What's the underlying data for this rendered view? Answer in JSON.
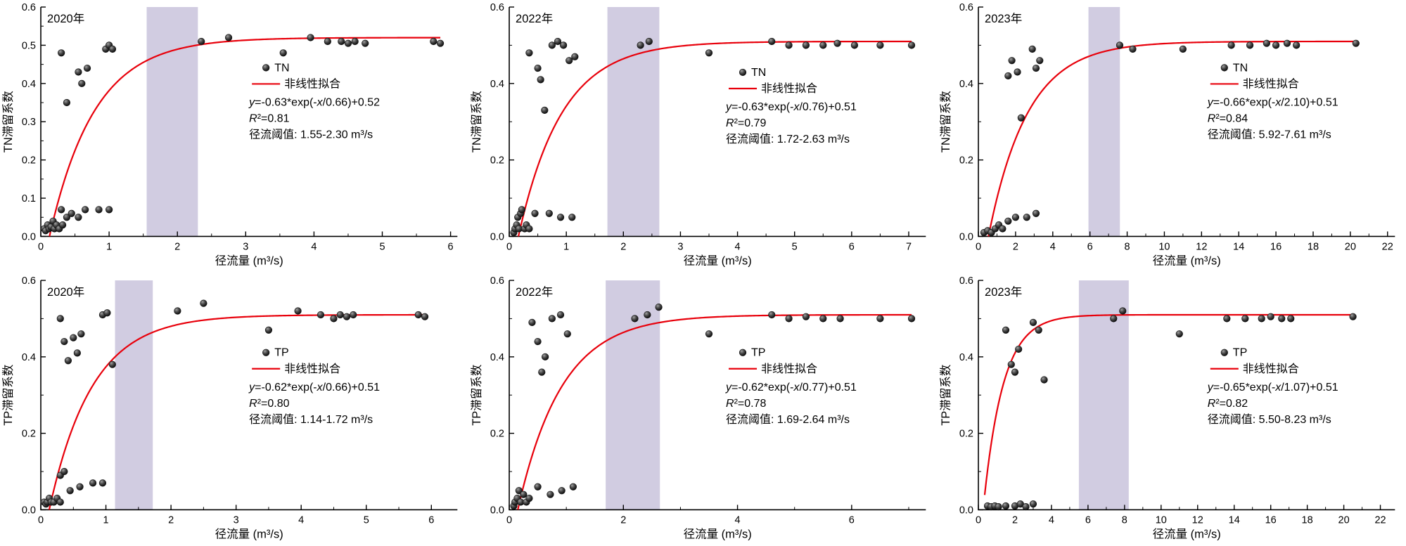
{
  "figure": {
    "background": "#ffffff"
  },
  "colors": {
    "curve": "#e8000b",
    "band": "#ccc7de",
    "point_dark": "#050505",
    "point_light": "#a0a0a0",
    "axis": "#000000",
    "text": "#000000"
  },
  "chart_data": [
    {
      "id": "tn-2020",
      "type": "scatter",
      "year_label": "2020年",
      "series_label": "TN",
      "fit_label": "非线性拟合",
      "equation": "y=-0.63*exp(-x/0.66)+0.52",
      "r_squared": "R²=0.81",
      "threshold_label": "径流阈值: 1.55-2.30 m³/s",
      "xlabel": "径流量 (m³/s)",
      "ylabel": "TN滞留系数",
      "xlim": [
        0,
        6.1
      ],
      "ylim": [
        0,
        0.6
      ],
      "xticks": [
        0,
        1,
        2,
        3,
        4,
        5,
        6
      ],
      "yticks": [
        0,
        0.1,
        0.2,
        0.3,
        0.4,
        0.5,
        0.6
      ],
      "band": [
        1.55,
        2.3
      ],
      "fit": {
        "A": 0.63,
        "B": 0.66,
        "C": 0.52
      },
      "legend_pos": [
        0.5,
        0.28
      ],
      "points": [
        [
          0.05,
          0.02
        ],
        [
          0.07,
          0.015
        ],
        [
          0.1,
          0.03
        ],
        [
          0.12,
          0.02
        ],
        [
          0.15,
          0.025
        ],
        [
          0.18,
          0.04
        ],
        [
          0.2,
          0.02
        ],
        [
          0.23,
          0.03
        ],
        [
          0.27,
          0.02
        ],
        [
          0.32,
          0.03
        ],
        [
          0.3,
          0.07
        ],
        [
          0.38,
          0.05
        ],
        [
          0.45,
          0.06
        ],
        [
          0.55,
          0.05
        ],
        [
          0.65,
          0.07
        ],
        [
          0.85,
          0.07
        ],
        [
          1.0,
          0.07
        ],
        [
          0.3,
          0.48
        ],
        [
          0.38,
          0.35
        ],
        [
          0.55,
          0.43
        ],
        [
          0.6,
          0.4
        ],
        [
          0.68,
          0.44
        ],
        [
          0.95,
          0.49
        ],
        [
          1.0,
          0.5
        ],
        [
          1.05,
          0.49
        ],
        [
          2.35,
          0.51
        ],
        [
          2.75,
          0.52
        ],
        [
          3.55,
          0.48
        ],
        [
          3.95,
          0.52
        ],
        [
          4.2,
          0.51
        ],
        [
          4.4,
          0.51
        ],
        [
          4.5,
          0.505
        ],
        [
          4.6,
          0.51
        ],
        [
          4.75,
          0.505
        ],
        [
          5.75,
          0.51
        ],
        [
          5.85,
          0.505
        ]
      ]
    },
    {
      "id": "tn-2022",
      "type": "scatter",
      "year_label": "2022年",
      "series_label": "TN",
      "fit_label": "非线性拟合",
      "equation": "y=-0.63*exp(-x/0.76)+0.51",
      "r_squared": "R²=0.79",
      "threshold_label": "径流阈值: 1.72-2.63 m³/s",
      "xlabel": "径流量 (m³/s)",
      "ylabel": "TN滞留系数",
      "xlim": [
        0,
        7.3
      ],
      "ylim": [
        0,
        0.6
      ],
      "xticks": [
        0,
        1,
        2,
        3,
        4,
        5,
        6,
        7
      ],
      "yticks": [
        0,
        0.2,
        0.4,
        0.6
      ],
      "band": [
        1.72,
        2.63
      ],
      "fit": {
        "A": 0.63,
        "B": 0.76,
        "C": 0.51
      },
      "legend_pos": [
        0.52,
        0.3
      ],
      "points": [
        [
          0.08,
          0.01
        ],
        [
          0.1,
          0.02
        ],
        [
          0.13,
          0.03
        ],
        [
          0.15,
          0.05
        ],
        [
          0.17,
          0.02
        ],
        [
          0.2,
          0.06
        ],
        [
          0.22,
          0.07
        ],
        [
          0.27,
          0.02
        ],
        [
          0.3,
          0.03
        ],
        [
          0.35,
          0.02
        ],
        [
          0.45,
          0.06
        ],
        [
          0.7,
          0.06
        ],
        [
          0.9,
          0.05
        ],
        [
          1.1,
          0.05
        ],
        [
          0.35,
          0.48
        ],
        [
          0.5,
          0.44
        ],
        [
          0.55,
          0.41
        ],
        [
          0.62,
          0.33
        ],
        [
          0.75,
          0.5
        ],
        [
          0.85,
          0.51
        ],
        [
          0.95,
          0.5
        ],
        [
          1.05,
          0.46
        ],
        [
          1.15,
          0.47
        ],
        [
          2.3,
          0.5
        ],
        [
          2.45,
          0.51
        ],
        [
          3.5,
          0.48
        ],
        [
          4.6,
          0.51
        ],
        [
          4.9,
          0.5
        ],
        [
          5.2,
          0.5
        ],
        [
          5.5,
          0.5
        ],
        [
          5.75,
          0.505
        ],
        [
          6.05,
          0.5
        ],
        [
          6.5,
          0.5
        ],
        [
          7.05,
          0.5
        ]
      ]
    },
    {
      "id": "tn-2023",
      "type": "scatter",
      "year_label": "2023年",
      "series_label": "TN",
      "fit_label": "非线性拟合",
      "equation": "y=-0.66*exp(-x/2.10)+0.51",
      "r_squared": "R²=0.84",
      "threshold_label": "径流阈值: 5.92-7.61 m³/s",
      "xlabel": "径流量 (m³/s)",
      "ylabel": "TN滞留系数",
      "xlim": [
        0,
        22.4
      ],
      "ylim": [
        0,
        0.6
      ],
      "xticks": [
        0,
        2,
        4,
        6,
        8,
        10,
        12,
        14,
        16,
        18,
        20,
        22
      ],
      "yticks": [
        0,
        0.2,
        0.4,
        0.6
      ],
      "band": [
        5.92,
        7.61
      ],
      "fit": {
        "A": 0.66,
        "B": 2.1,
        "C": 0.51
      },
      "legend_pos": [
        0.55,
        0.28
      ],
      "points": [
        [
          0.3,
          0.01
        ],
        [
          0.5,
          0.015
        ],
        [
          0.7,
          0.01
        ],
        [
          0.9,
          0.02
        ],
        [
          1.1,
          0.03
        ],
        [
          1.3,
          0.02
        ],
        [
          1.6,
          0.04
        ],
        [
          2.0,
          0.05
        ],
        [
          2.6,
          0.05
        ],
        [
          3.1,
          0.06
        ],
        [
          1.6,
          0.42
        ],
        [
          1.8,
          0.46
        ],
        [
          2.1,
          0.43
        ],
        [
          2.3,
          0.31
        ],
        [
          2.9,
          0.49
        ],
        [
          3.1,
          0.44
        ],
        [
          3.3,
          0.46
        ],
        [
          7.6,
          0.5
        ],
        [
          8.3,
          0.49
        ],
        [
          11.0,
          0.49
        ],
        [
          13.6,
          0.5
        ],
        [
          14.6,
          0.5
        ],
        [
          15.5,
          0.505
        ],
        [
          16.0,
          0.5
        ],
        [
          16.6,
          0.505
        ],
        [
          17.1,
          0.5
        ],
        [
          20.3,
          0.505
        ]
      ]
    },
    {
      "id": "tp-2020",
      "type": "scatter",
      "year_label": "2020年",
      "series_label": "TP",
      "fit_label": "非线性拟合",
      "equation": "y=-0.62*exp(-x/0.66)+0.51",
      "r_squared": "R²=0.80",
      "threshold_label": "径流阈值: 1.14-1.72 m³/s",
      "xlabel": "径流量 (m³/s)",
      "ylabel": "TP滞留系数",
      "xlim": [
        0,
        6.4
      ],
      "ylim": [
        0,
        0.6
      ],
      "xticks": [
        0,
        1,
        2,
        3,
        4,
        5,
        6
      ],
      "yticks": [
        0,
        0.2,
        0.4,
        0.6
      ],
      "band": [
        1.14,
        1.72
      ],
      "fit": {
        "A": 0.62,
        "B": 0.66,
        "C": 0.51
      },
      "legend_pos": [
        0.5,
        0.33
      ],
      "points": [
        [
          0.05,
          0.02
        ],
        [
          0.08,
          0.015
        ],
        [
          0.1,
          0.02
        ],
        [
          0.13,
          0.03
        ],
        [
          0.16,
          0.02
        ],
        [
          0.2,
          0.02
        ],
        [
          0.25,
          0.03
        ],
        [
          0.3,
          0.02
        ],
        [
          0.3,
          0.09
        ],
        [
          0.36,
          0.1
        ],
        [
          0.45,
          0.05
        ],
        [
          0.6,
          0.06
        ],
        [
          0.8,
          0.07
        ],
        [
          0.95,
          0.07
        ],
        [
          0.3,
          0.5
        ],
        [
          0.36,
          0.44
        ],
        [
          0.42,
          0.39
        ],
        [
          0.5,
          0.45
        ],
        [
          0.56,
          0.41
        ],
        [
          0.62,
          0.46
        ],
        [
          0.95,
          0.51
        ],
        [
          1.02,
          0.515
        ],
        [
          1.1,
          0.38
        ],
        [
          2.1,
          0.52
        ],
        [
          2.5,
          0.54
        ],
        [
          3.5,
          0.47
        ],
        [
          3.95,
          0.52
        ],
        [
          4.3,
          0.51
        ],
        [
          4.5,
          0.5
        ],
        [
          4.6,
          0.51
        ],
        [
          4.7,
          0.505
        ],
        [
          4.8,
          0.51
        ],
        [
          5.8,
          0.51
        ],
        [
          5.9,
          0.505
        ]
      ]
    },
    {
      "id": "tp-2022",
      "type": "scatter",
      "year_label": "2022年",
      "series_label": "TP",
      "fit_label": "非线性拟合",
      "equation": "y=-0.62*exp(-x/0.77)+0.51",
      "r_squared": "R²=0.78",
      "threshold_label": "径流阈值: 1.69-2.64 m³/s",
      "xlabel": "径流量 (m³/s)",
      "ylabel": "TP滞留系数",
      "xlim": [
        0,
        7.3
      ],
      "ylim": [
        0,
        0.6
      ],
      "xticks": [
        0,
        2,
        4,
        6
      ],
      "yticks": [
        0,
        0.2,
        0.4,
        0.6
      ],
      "band": [
        1.69,
        2.64
      ],
      "fit": {
        "A": 0.62,
        "B": 0.77,
        "C": 0.51
      },
      "legend_pos": [
        0.52,
        0.33
      ],
      "points": [
        [
          0.08,
          0.01
        ],
        [
          0.1,
          0.02
        ],
        [
          0.14,
          0.03
        ],
        [
          0.17,
          0.05
        ],
        [
          0.2,
          0.02
        ],
        [
          0.25,
          0.04
        ],
        [
          0.3,
          0.02
        ],
        [
          0.35,
          0.03
        ],
        [
          0.5,
          0.06
        ],
        [
          0.72,
          0.04
        ],
        [
          0.92,
          0.05
        ],
        [
          1.12,
          0.06
        ],
        [
          0.4,
          0.49
        ],
        [
          0.5,
          0.44
        ],
        [
          0.57,
          0.36
        ],
        [
          0.63,
          0.4
        ],
        [
          0.75,
          0.5
        ],
        [
          0.9,
          0.51
        ],
        [
          1.02,
          0.46
        ],
        [
          2.2,
          0.5
        ],
        [
          2.42,
          0.51
        ],
        [
          2.62,
          0.53
        ],
        [
          3.5,
          0.46
        ],
        [
          4.6,
          0.51
        ],
        [
          4.9,
          0.5
        ],
        [
          5.2,
          0.505
        ],
        [
          5.5,
          0.5
        ],
        [
          5.8,
          0.5
        ],
        [
          6.5,
          0.5
        ],
        [
          7.05,
          0.5
        ]
      ]
    },
    {
      "id": "tp-2023",
      "type": "scatter",
      "year_label": "2023年",
      "series_label": "TP",
      "fit_label": "非线性拟合",
      "equation": "y=-0.65*exp(-x/1.07)+0.51",
      "r_squared": "R²=0.82",
      "threshold_label": "径流阈值: 5.50-8.23 m³/s",
      "xlabel": "径流量 (m³/s)",
      "ylabel": "TP滞留系数",
      "xlim": [
        0,
        22.8
      ],
      "ylim": [
        0,
        0.6
      ],
      "xticks": [
        0,
        2,
        4,
        6,
        8,
        10,
        12,
        14,
        16,
        18,
        20,
        22
      ],
      "yticks": [
        0,
        0.2,
        0.4,
        0.6
      ],
      "band": [
        5.5,
        8.23
      ],
      "fit": {
        "A": 0.65,
        "B": 1.07,
        "C": 0.51
      },
      "legend_pos": [
        0.55,
        0.33
      ],
      "points": [
        [
          0.5,
          0.01
        ],
        [
          0.7,
          0.008
        ],
        [
          0.9,
          0.01
        ],
        [
          1.1,
          0.008
        ],
        [
          1.5,
          0.01
        ],
        [
          2.0,
          0.01
        ],
        [
          2.3,
          0.015
        ],
        [
          2.6,
          0.008
        ],
        [
          3.0,
          0.015
        ],
        [
          1.5,
          0.47
        ],
        [
          1.8,
          0.38
        ],
        [
          2.0,
          0.36
        ],
        [
          2.2,
          0.42
        ],
        [
          3.0,
          0.49
        ],
        [
          3.3,
          0.47
        ],
        [
          3.6,
          0.34
        ],
        [
          7.4,
          0.5
        ],
        [
          7.9,
          0.52
        ],
        [
          11.0,
          0.46
        ],
        [
          13.6,
          0.5
        ],
        [
          14.6,
          0.5
        ],
        [
          15.5,
          0.5
        ],
        [
          16.0,
          0.505
        ],
        [
          16.6,
          0.5
        ],
        [
          17.1,
          0.5
        ],
        [
          20.5,
          0.505
        ]
      ]
    }
  ]
}
